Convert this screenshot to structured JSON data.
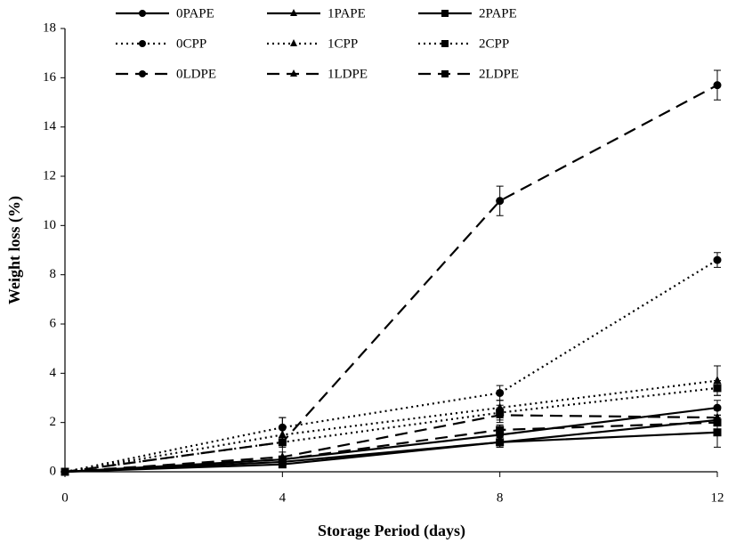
{
  "chart_data": {
    "type": "line",
    "xlabel": "Storage Period (days)",
    "ylabel": "Weight loss (%)",
    "x": [
      0,
      4,
      8,
      12
    ],
    "xlim": [
      0,
      12
    ],
    "xticks": [
      0,
      4,
      8,
      12
    ],
    "ylim": [
      0,
      18
    ],
    "yticks": [
      0,
      2,
      4,
      6,
      8,
      10,
      12,
      14,
      16,
      18
    ],
    "series": [
      {
        "name": "0PAPE",
        "color": "#000000",
        "dash": "solid",
        "marker": "circle",
        "values": [
          0,
          0.5,
          1.5,
          2.6
        ],
        "errors": [
          0,
          0.1,
          0.2,
          0.3
        ]
      },
      {
        "name": "1PAPE",
        "color": "#000000",
        "dash": "solid",
        "marker": "triangle",
        "values": [
          0,
          0.4,
          1.2,
          2.1
        ],
        "errors": [
          0,
          0.1,
          0.2,
          0.2
        ]
      },
      {
        "name": "2PAPE",
        "color": "#000000",
        "dash": "solid",
        "marker": "square",
        "values": [
          0,
          0.3,
          1.2,
          1.6
        ],
        "errors": [
          0,
          0.1,
          0.2,
          0.6
        ]
      },
      {
        "name": "0CPP",
        "color": "#000000",
        "dash": "dotted",
        "marker": "circle",
        "values": [
          0,
          1.8,
          3.2,
          8.6
        ],
        "errors": [
          0,
          0.4,
          0.3,
          0.3
        ]
      },
      {
        "name": "1CPP",
        "color": "#000000",
        "dash": "dotted",
        "marker": "triangle",
        "values": [
          0,
          1.5,
          2.6,
          3.7
        ],
        "errors": [
          0,
          0.3,
          0.3,
          0.6
        ]
      },
      {
        "name": "2CPP",
        "color": "#000000",
        "dash": "dotted",
        "marker": "square",
        "values": [
          0,
          1.2,
          2.4,
          3.4
        ],
        "errors": [
          0,
          0.2,
          0.3,
          0.3
        ]
      },
      {
        "name": "0LDPE",
        "color": "#000000",
        "dash": "dashed",
        "marker": "circle",
        "values": [
          0,
          1.2,
          11.0,
          15.7
        ],
        "errors": [
          0,
          1.0,
          0.6,
          0.6
        ]
      },
      {
        "name": "1LDPE",
        "color": "#000000",
        "dash": "dashed",
        "marker": "triangle",
        "values": [
          0,
          0.6,
          2.3,
          2.2
        ],
        "errors": [
          0,
          0.2,
          0.3,
          0.3
        ]
      },
      {
        "name": "2LDPE",
        "color": "#000000",
        "dash": "dashed",
        "marker": "square",
        "values": [
          0,
          0.5,
          1.7,
          2.0
        ],
        "errors": [
          0,
          0.1,
          0.2,
          0.3
        ]
      }
    ]
  }
}
